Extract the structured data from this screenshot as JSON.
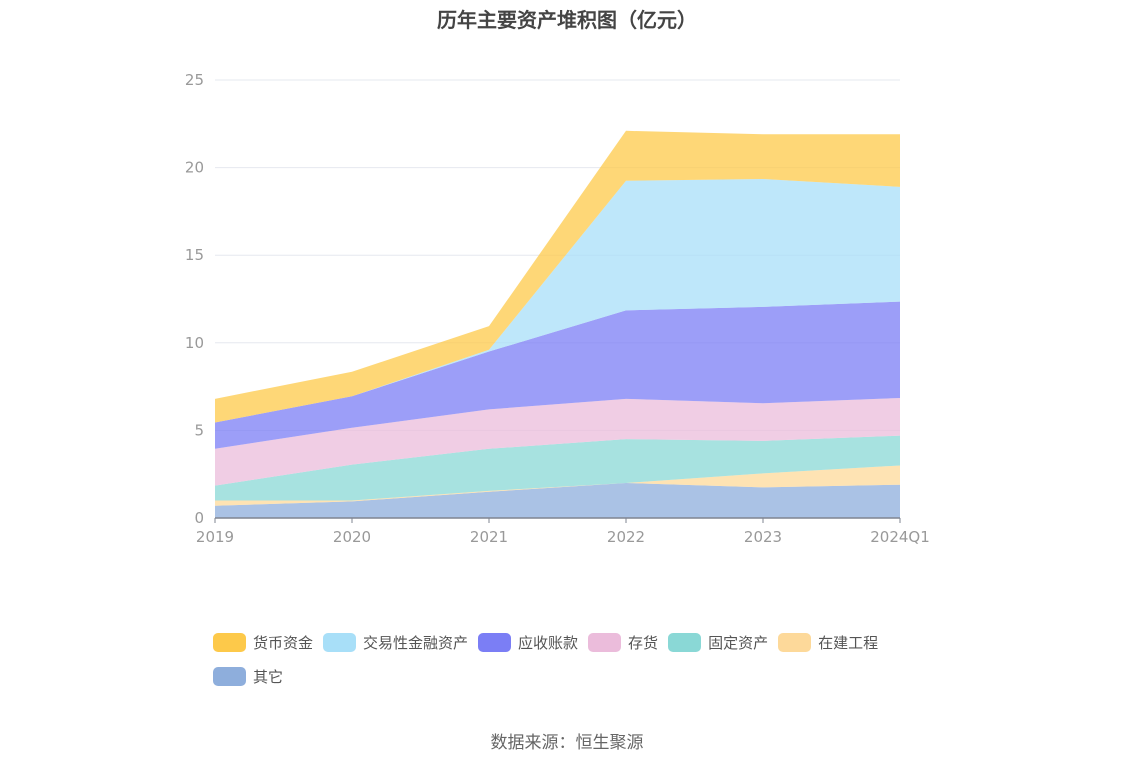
{
  "title": "历年主要资产堆积图（亿元）",
  "source": "数据来源：恒生聚源",
  "chart_data": {
    "type": "area",
    "stacked": true,
    "title": "历年主要资产堆积图（亿元）",
    "categories": [
      "2019",
      "2020",
      "2021",
      "2022",
      "2023",
      "2024Q1"
    ],
    "ylim": [
      0,
      25
    ],
    "yticks": [
      0,
      5,
      10,
      15,
      20,
      25
    ],
    "grid": true,
    "legend_position": "bottom",
    "series": [
      {
        "name": "其它",
        "color": "#8eaedc",
        "values": [
          0.7,
          0.95,
          1.5,
          2.0,
          1.75,
          1.9
        ]
      },
      {
        "name": "在建工程",
        "color": "#fdd99a",
        "values": [
          0.3,
          0.05,
          0.05,
          0.0,
          0.8,
          1.1
        ]
      },
      {
        "name": "固定资产",
        "color": "#8ad8d6",
        "values": [
          0.85,
          2.05,
          2.4,
          2.5,
          1.85,
          1.7
        ]
      },
      {
        "name": "存货",
        "color": "#ebbcdb",
        "values": [
          2.1,
          2.1,
          2.25,
          2.3,
          2.15,
          2.15
        ]
      },
      {
        "name": "应收账款",
        "color": "#7b7ef5",
        "values": [
          1.5,
          1.8,
          3.3,
          5.05,
          5.5,
          5.5
        ]
      },
      {
        "name": "交易性金融资产",
        "color": "#a8dff8",
        "values": [
          0.0,
          0.0,
          0.1,
          7.4,
          7.3,
          6.55
        ]
      },
      {
        "name": "货币资金",
        "color": "#fdc94a",
        "values": [
          1.35,
          1.4,
          1.35,
          2.85,
          2.55,
          3.0
        ]
      }
    ]
  }
}
